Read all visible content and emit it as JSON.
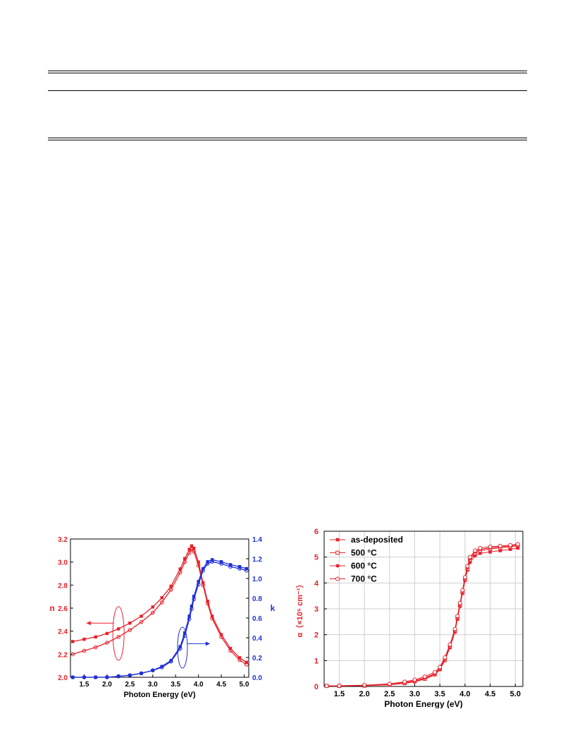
{
  "chart_data": [
    {
      "type": "line",
      "xlabel": "Photon Energy (eV)",
      "ylabel": "n",
      "y2label": "k",
      "xlim": [
        1.2,
        5.1
      ],
      "ylim": [
        2.0,
        3.2
      ],
      "y2lim": [
        0.0,
        1.4
      ],
      "xticks": [
        "1.5",
        "2.0",
        "2.5",
        "3.0",
        "3.5",
        "4.0",
        "4.5",
        "5.0"
      ],
      "yticks": [
        "2.0",
        "2.2",
        "2.4",
        "2.6",
        "2.8",
        "3.0",
        "3.2"
      ],
      "y2ticks": [
        "0.0",
        "0.2",
        "0.4",
        "0.6",
        "0.8",
        "1.0",
        "1.2",
        "1.4"
      ],
      "colors": {
        "n": "#e8202a",
        "k": "#1f2fd6"
      },
      "x": [
        1.25,
        1.5,
        1.75,
        2.0,
        2.25,
        2.5,
        2.75,
        3.0,
        3.2,
        3.4,
        3.6,
        3.7,
        3.8,
        3.85,
        3.9,
        4.0,
        4.1,
        4.2,
        4.3,
        4.5,
        4.7,
        4.9,
        5.05
      ],
      "series": [
        {
          "axis": "n",
          "values": [
            2.31,
            2.33,
            2.35,
            2.38,
            2.42,
            2.47,
            2.53,
            2.61,
            2.69,
            2.79,
            2.94,
            3.03,
            3.11,
            3.14,
            3.12,
            3.0,
            2.82,
            2.66,
            2.53,
            2.37,
            2.25,
            2.17,
            2.13
          ]
        },
        {
          "axis": "n",
          "values": [
            2.2,
            2.23,
            2.26,
            2.3,
            2.35,
            2.41,
            2.48,
            2.56,
            2.65,
            2.76,
            2.91,
            3.0,
            3.08,
            3.11,
            3.09,
            2.97,
            2.8,
            2.64,
            2.51,
            2.35,
            2.23,
            2.15,
            2.11
          ]
        },
        {
          "axis": "k",
          "values": [
            0.0,
            0.0,
            0.0,
            0.0,
            0.01,
            0.02,
            0.04,
            0.07,
            0.11,
            0.17,
            0.31,
            0.45,
            0.62,
            0.72,
            0.82,
            0.97,
            1.1,
            1.17,
            1.19,
            1.17,
            1.14,
            1.12,
            1.1
          ]
        },
        {
          "axis": "k",
          "values": [
            0.0,
            0.0,
            0.0,
            0.0,
            0.01,
            0.02,
            0.04,
            0.07,
            0.1,
            0.16,
            0.29,
            0.42,
            0.59,
            0.69,
            0.79,
            0.94,
            1.08,
            1.15,
            1.17,
            1.15,
            1.12,
            1.1,
            1.08
          ]
        }
      ]
    },
    {
      "type": "line",
      "xlabel": "Photon Energy (eV)",
      "ylabel": "α（×10⁵ cm⁻¹）",
      "xlim": [
        1.2,
        5.15
      ],
      "ylim": [
        0,
        6
      ],
      "xticks": [
        "1.5",
        "2.0",
        "2.5",
        "3.0",
        "3.5",
        "4.0",
        "4.5",
        "5.0"
      ],
      "yticks": [
        "0",
        "1",
        "2",
        "3",
        "4",
        "5",
        "6"
      ],
      "grid": true,
      "legend": "top-left",
      "color": "#e8202a",
      "x": [
        1.25,
        1.5,
        2.0,
        2.5,
        2.8,
        3.0,
        3.2,
        3.4,
        3.5,
        3.6,
        3.7,
        3.8,
        3.85,
        3.9,
        3.95,
        4.0,
        4.05,
        4.1,
        4.2,
        4.3,
        4.5,
        4.7,
        4.9,
        5.05
      ],
      "series": [
        {
          "name": "as-deposited",
          "marker": "filled-square",
          "values": [
            0.02,
            0.02,
            0.03,
            0.06,
            0.12,
            0.18,
            0.28,
            0.45,
            0.65,
            1.0,
            1.5,
            2.1,
            2.6,
            3.1,
            3.6,
            4.1,
            4.5,
            4.8,
            5.05,
            5.15,
            5.2,
            5.25,
            5.3,
            5.35
          ]
        },
        {
          "name": "500 °C",
          "marker": "open-square",
          "values": [
            0.02,
            0.02,
            0.03,
            0.07,
            0.13,
            0.2,
            0.3,
            0.48,
            0.68,
            1.05,
            1.55,
            2.15,
            2.65,
            3.15,
            3.65,
            4.15,
            4.55,
            4.9,
            5.15,
            5.25,
            5.32,
            5.36,
            5.4,
            5.45
          ]
        },
        {
          "name": "600 °C",
          "marker": "filled-circle",
          "values": [
            0.02,
            0.02,
            0.04,
            0.08,
            0.15,
            0.22,
            0.33,
            0.5,
            0.7,
            1.08,
            1.58,
            2.18,
            2.68,
            3.18,
            3.68,
            4.18,
            4.6,
            4.95,
            5.2,
            5.3,
            5.36,
            5.4,
            5.43,
            5.47
          ]
        },
        {
          "name": "700 °C",
          "marker": "open-circle",
          "values": [
            0.02,
            0.03,
            0.05,
            0.1,
            0.18,
            0.26,
            0.38,
            0.55,
            0.75,
            1.12,
            1.62,
            2.22,
            2.72,
            3.22,
            3.72,
            4.22,
            4.65,
            5.0,
            5.25,
            5.35,
            5.4,
            5.43,
            5.46,
            5.5
          ]
        }
      ]
    }
  ]
}
